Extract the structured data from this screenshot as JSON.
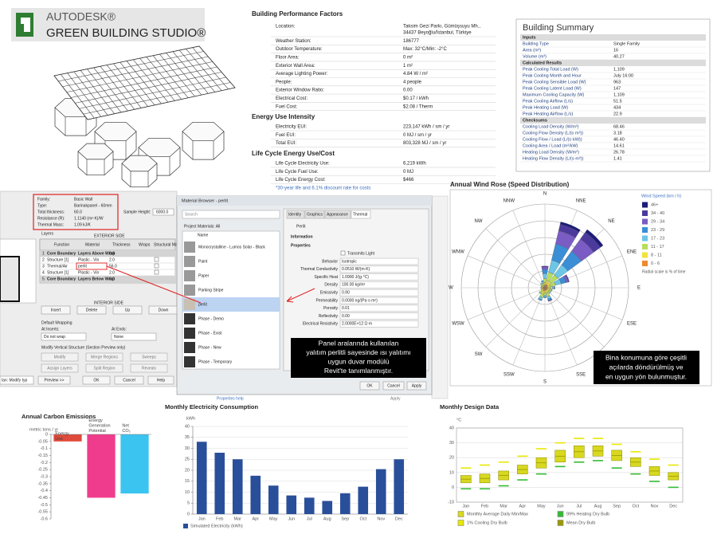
{
  "logo": {
    "brand": "AUTODESK®",
    "product": "GREEN BUILDING STUDIO®"
  },
  "performance": {
    "title": "Building Performance Factors",
    "rows": [
      [
        "Location:",
        "Taksim Gezi Parkı, Gümüşsuyu Mh.,",
        "34437 Beyoğlu/İstanbul, Türkiye"
      ],
      [
        "Weather Station:",
        "186777"
      ],
      [
        "Outdoor Temperature:",
        "Max: 32°C/Min: -2°C"
      ],
      [
        "Floor Area:",
        "0 m²"
      ],
      [
        "Exterior Wall Area:",
        "1 m²"
      ],
      [
        "Average Lighting Power:",
        "4.84 W / m²"
      ],
      [
        "People:",
        "4 people"
      ],
      [
        "Exterior Window Ratio:",
        "0.00"
      ],
      [
        "Electrical Cost:",
        "$0.17 / kWh"
      ],
      [
        "Fuel Cost:",
        "$2.08 / Therm"
      ]
    ],
    "eui_title": "Energy Use Intensity",
    "eui_rows": [
      [
        "Electricity EUI:",
        "223,147 kWh / sm / yr"
      ],
      [
        "Fuel EUI:",
        "0 MJ / sm / yr"
      ],
      [
        "Total EUI:",
        "803,328 MJ / sm / yr"
      ]
    ],
    "lc_title": "Life Cycle Energy Use/Cost",
    "lc_rows": [
      [
        "Life Cycle Electricity Use:",
        "6,219 kWh"
      ],
      [
        "Life Cycle Fuel Use:",
        "0 MJ"
      ],
      [
        "Life Cycle Energy Cost:",
        "$466"
      ]
    ],
    "note": "*30-year life and 6.1% discount rate for costs"
  },
  "summary": {
    "title": "Building Summary",
    "sections": [
      {
        "heading": "Inputs",
        "rows": [
          [
            "Building Type",
            "Single Family"
          ],
          [
            "Area (m²)",
            "16"
          ],
          [
            "Volume (m³)",
            "40.27"
          ]
        ]
      },
      {
        "heading": "Calculated Results",
        "rows": [
          [
            "Peak Cooling Total Load (W)",
            "1,109"
          ],
          [
            "Peak Cooling Month and Hour",
            "July 16:00"
          ],
          [
            "Peak Cooling Sensible Load (W)",
            "963"
          ],
          [
            "Peak Cooling Latent Load (W)",
            "147"
          ],
          [
            "Maximum Cooling Capacity (W)",
            "1,109"
          ],
          [
            "Peak Cooling Airflow (L/s)",
            "51.5"
          ],
          [
            "Peak Heating Load (W)",
            "434"
          ],
          [
            "Peak Heating Airflow (L/s)",
            "22.9"
          ]
        ]
      },
      {
        "heading": "Checksums",
        "rows": [
          [
            "Cooling Load Density (W/m²)",
            "68.46"
          ],
          [
            "Cooling Flow Density (L/(s·m²))",
            "3.18"
          ],
          [
            "Cooling Flow / Load (L/(s·kW))",
            "46.40"
          ],
          [
            "Cooling Area / Load (m²/kW)",
            "14.61"
          ],
          [
            "Heating Load Density (W/m²)",
            "26.78"
          ],
          [
            "Heating Flow Density (L/(s·m²))",
            "1.41"
          ]
        ]
      }
    ]
  },
  "revit": {
    "props": [
      [
        "Family:",
        "Basic Wall"
      ],
      [
        "Type:",
        "Barinakpanel - 60mm"
      ],
      [
        "Total thickness:",
        "60.0"
      ],
      [
        "Resistance (R):",
        "1.1140 (m²·K)/W"
      ],
      [
        "Thermal Mass:",
        "1.09 kJ/K"
      ]
    ],
    "sample_height_label": "Sample Height:",
    "sample_height": "6000.0",
    "layers_label": "Layers",
    "exterior": "EXTERIOR SIDE",
    "columns": [
      "Function",
      "Material",
      "Thickness",
      "Wraps",
      "Structural Material"
    ],
    "layers": [
      [
        "1",
        "Core Boundary",
        "Layers Above Wrap",
        "0.0"
      ],
      [
        "2",
        "Structure [1]",
        "Plastic - Vin",
        "2.0"
      ],
      [
        "3",
        "Thermal/Air",
        "perlit",
        "56.0"
      ],
      [
        "4",
        "Structure [1]",
        "Plastic - Vin",
        "2.0"
      ],
      [
        "5",
        "Core Boundary",
        "Layers Below Wrap",
        "0.0"
      ]
    ],
    "interior": "INTERIOR SIDE",
    "buttons": [
      "Insert",
      "Delete",
      "Up",
      "Down"
    ],
    "wrapping": "Default Wrapping",
    "at_inserts": "At Inserts:",
    "at_ends": "At Ends:",
    "do_not_wrap": "Do not wrap",
    "none": "None",
    "modify_label": "Modify Vertical Structure (Section Preview only)",
    "mod_buttons": [
      "Modify",
      "Merge Regions",
      "Sweeps",
      "Assign Layers",
      "Split Region",
      "Reveals"
    ],
    "view": "lan: Modify typ",
    "bottom": [
      "Preview >>",
      "OK",
      "Cancel",
      "Help"
    ]
  },
  "material_browser": {
    "title": "Material Browser - perlit",
    "search": "Search",
    "project": "Project Materials: All",
    "name_col": "Name",
    "materials": [
      "Monocrystalline - Lumos Solar - Black",
      "Paint",
      "Paper",
      "Parking Stripe",
      "perlit",
      "Phase - Demo",
      "Phase - Exist",
      "Phase - New",
      "Phase - Temporary"
    ],
    "tabs": [
      "Identity",
      "Graphics",
      "Appearance",
      "Thermal"
    ],
    "material": "Perlit",
    "info": "Information",
    "props_title": "Properties",
    "transmits": "Transmits Light",
    "props": [
      [
        "Behavior",
        "Isotropic"
      ],
      [
        "Thermal Conductivity",
        "0.0510 W/(m·K)"
      ],
      [
        "Specific Heat",
        "1.0900 J/(g·°C)"
      ],
      [
        "Density",
        "100.00 kg/m³"
      ],
      [
        "Emissivity",
        "0.90"
      ],
      [
        "Permeability",
        "0.0000 ng/(Pa·s·m²)"
      ],
      [
        "Porosity",
        "0.01"
      ],
      [
        "Reflectivity",
        "0.00"
      ],
      [
        "Electrical Resistivity",
        "2.0000E+12 Ω·m"
      ]
    ],
    "buttons": [
      "OK",
      "Cancel",
      "Apply"
    ],
    "behind_help": "Properties help",
    "behind_apply": "Apply"
  },
  "annotations": [
    [
      "Panel aralarında kullanılan",
      "yalıtım perlitli sayesinde ısı yalıtımı",
      "uygun duvar modülü",
      "Revit'te tanımlanmıştır."
    ],
    [
      "Bina konumuna göre çeşitli",
      "açılarda döndürülmüş ve",
      "en uygun yön bulunmuştur."
    ]
  ],
  "chart_data": [
    {
      "type": "windrose",
      "title": "Annual Wind Rose (Speed Distribution)",
      "directions": [
        "N",
        "NNE",
        "NE",
        "ENE",
        "E",
        "ESE",
        "SE",
        "SSE",
        "S",
        "SSW",
        "SW",
        "WSW",
        "W",
        "WNW",
        "NW",
        "NNW"
      ],
      "rlim": [
        0,
        10
      ],
      "rticks": [
        2,
        4,
        6,
        8,
        10
      ],
      "legend_title": "Wind Speed (km / h)",
      "note": "Radial scale is % of time",
      "series": [
        {
          "name": "0 - 6",
          "color": "#f08a2e",
          "values": [
            0.3,
            0.4,
            0.4,
            0.3,
            0.3,
            0.3,
            0.3,
            0.3,
            0.3,
            0.4,
            0.3,
            0.2,
            0.2,
            0.2,
            0.2,
            0.2
          ]
        },
        {
          "name": "8 - 11",
          "color": "#f2e23c",
          "values": [
            0.3,
            0.5,
            0.5,
            0.4,
            0.3,
            0.3,
            0.3,
            0.4,
            0.3,
            0.4,
            0.3,
            0.2,
            0.2,
            0.2,
            0.2,
            0.2
          ]
        },
        {
          "name": "11 - 17",
          "color": "#b6e05a",
          "values": [
            0.5,
            1,
            1,
            0.6,
            0.3,
            0.2,
            0.2,
            0.4,
            0.3,
            0.4,
            0.2,
            0.1,
            0.1,
            0.1,
            0.2,
            0.2
          ]
        },
        {
          "name": "17 - 23",
          "color": "#6cc6e6",
          "values": [
            0.6,
            1.5,
            1.5,
            0.7,
            0.2,
            0.1,
            0.1,
            0.3,
            0.2,
            0.3,
            0.1,
            0,
            0,
            0,
            0.1,
            0.2
          ]
        },
        {
          "name": "23 - 29",
          "color": "#3a8ed6",
          "values": [
            0.5,
            2,
            2,
            0.6,
            0.1,
            0,
            0,
            0.2,
            0.1,
            0.1,
            0,
            0,
            0,
            0,
            0,
            0.1
          ]
        },
        {
          "name": "29 - 34",
          "color": "#7a5cc4",
          "values": [
            0.3,
            1.6,
            1.8,
            0.3,
            0,
            0,
            0,
            0.1,
            0,
            0,
            0,
            0,
            0,
            0,
            0,
            0
          ]
        },
        {
          "name": "34 - 40",
          "color": "#4b3a9c",
          "values": [
            0.1,
            0.8,
            1,
            0.1,
            0,
            0,
            0,
            0,
            0,
            0,
            0,
            0,
            0,
            0,
            0,
            0
          ]
        },
        {
          "name": "46+",
          "color": "#1c1c7a",
          "values": [
            0,
            0.3,
            0.4,
            0,
            0,
            0,
            0,
            0,
            0,
            0,
            0,
            0,
            0,
            0,
            0,
            0
          ]
        }
      ]
    },
    {
      "type": "bar",
      "title": "Annual Carbon Emissions",
      "ylabel": "metric tons / yr",
      "categories": [
        "Energy Use",
        "Energy Generation Potential",
        "Net CO₂"
      ],
      "values": [
        -0.05,
        -0.45,
        -0.42
      ],
      "colors": [
        "#e04a3a",
        "#f03c8c",
        "#3cc4f0"
      ],
      "ylim": [
        -0.6,
        0
      ],
      "yticks": [
        0,
        -0.05,
        -0.1,
        -0.15,
        -0.2,
        -0.25,
        -0.3,
        -0.35,
        -0.4,
        -0.45,
        -0.5,
        -0.55,
        -0.6
      ]
    },
    {
      "type": "bar",
      "title": "Monthly Electricity Consumption",
      "ylabel": "kWh",
      "categories": [
        "Jan",
        "Feb",
        "Mar",
        "Apr",
        "May",
        "Jun",
        "Jul",
        "Aug",
        "Sep",
        "Oct",
        "Nov",
        "Dec"
      ],
      "series": [
        {
          "name": "Simulated Electricity (kWh)",
          "color": "#2a4f9a",
          "values": [
            33,
            28,
            25,
            17.5,
            13,
            8.5,
            7.5,
            6,
            9.5,
            12.5,
            20.5,
            25
          ]
        }
      ],
      "ylim": [
        0,
        40
      ],
      "yticks": [
        0,
        5,
        10,
        15,
        20,
        25,
        30,
        35,
        40
      ],
      "grid": true
    },
    {
      "type": "box",
      "title": "Monthly Design Data",
      "ylabel": "°C",
      "categories": [
        "Jan",
        "Feb",
        "Mar",
        "Apr",
        "May",
        "Jun",
        "Jul",
        "Aug",
        "Sep",
        "Oct",
        "Nov",
        "Dec"
      ],
      "ylim": [
        -10,
        40
      ],
      "yticks": [
        -10,
        0,
        10,
        20,
        30,
        40
      ],
      "grid": true,
      "series": [
        {
          "name": "Monthly Average Daily Min/Max",
          "color": "#d8d820",
          "min": [
            3,
            3,
            5,
            9,
            13,
            17,
            20,
            21,
            18,
            14,
            8,
            5
          ],
          "max": [
            8,
            9,
            11,
            15,
            20,
            25,
            28,
            28,
            25,
            20,
            14,
            10
          ]
        },
        {
          "name": "99% Heating Dry Bulb",
          "color": "#33bb33",
          "values": [
            -1,
            -1,
            1,
            5,
            9,
            14,
            17,
            18,
            13,
            9,
            4,
            0
          ]
        },
        {
          "name": "1% Cooling Dry Bulb",
          "color": "#e8e800",
          "values": [
            13,
            15,
            17,
            21,
            26,
            30,
            33,
            33,
            29,
            24,
            19,
            15
          ]
        },
        {
          "name": "Mean Dry Bulb",
          "color": "#9a9a00",
          "values": [
            5.5,
            6,
            8,
            12,
            16.5,
            21,
            24,
            24.5,
            21.5,
            17,
            11,
            7.5
          ]
        }
      ]
    }
  ]
}
